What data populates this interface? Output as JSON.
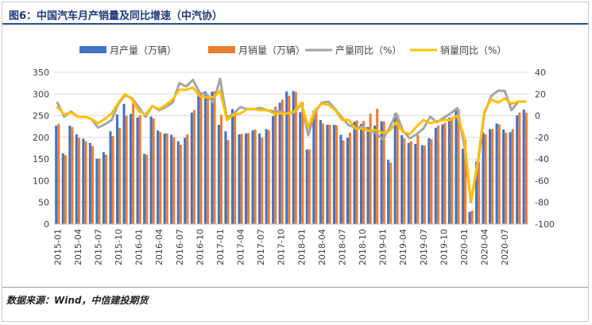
{
  "title": "图6：中国汽车月产销量及同比增速（中汽协）",
  "source": "数据来源：Wind，中信建投期货",
  "colors": {
    "production_bar": "#4472C4",
    "sales_bar": "#ED7D31",
    "production_yoy": "#A5A5A5",
    "sales_yoy": "#FFC000",
    "grid": "#d9d9d9",
    "title": "#1f3a78"
  },
  "chart_data": {
    "type": "bar",
    "legend_position": "top",
    "grid": true,
    "y_left": {
      "min": 0,
      "max": 350,
      "ticks": [
        "0",
        "50",
        "100",
        "150",
        "200",
        "250",
        "300",
        "350"
      ]
    },
    "y_right": {
      "min": -100,
      "max": 40,
      "ticks": [
        "-100",
        "-80",
        "-60",
        "-40",
        "-20",
        "0",
        "20",
        "40"
      ]
    },
    "categories": [
      "2015-01",
      "2015-02",
      "2015-03",
      "2015-04",
      "2015-05",
      "2015-06",
      "2015-07",
      "2015-08",
      "2015-09",
      "2015-10",
      "2015-11",
      "2015-12",
      "2016-01",
      "2016-02",
      "2016-03",
      "2016-04",
      "2016-05",
      "2016-06",
      "2016-07",
      "2016-08",
      "2016-09",
      "2016-10",
      "2016-11",
      "2016-12",
      "2017-01",
      "2017-02",
      "2017-03",
      "2017-04",
      "2017-05",
      "2017-06",
      "2017-07",
      "2017-08",
      "2017-09",
      "2017-10",
      "2017-11",
      "2017-12",
      "2018-01",
      "2018-02",
      "2018-03",
      "2018-04",
      "2018-05",
      "2018-06",
      "2018-07",
      "2018-08",
      "2018-09",
      "2018-10",
      "2018-11",
      "2018-12",
      "2019-01",
      "2019-02",
      "2019-03",
      "2019-04",
      "2019-05",
      "2019-06",
      "2019-07",
      "2019-08",
      "2019-09",
      "2019-10",
      "2019-11",
      "2019-12",
      "2020-01",
      "2020-02",
      "2020-03",
      "2020-04",
      "2020-05",
      "2020-06",
      "2020-07",
      "2020-08",
      "2020-09",
      "2020-10"
    ],
    "tick_labels": [
      "2015-01",
      "2015-04",
      "2015-07",
      "2015-10",
      "2016-01",
      "2016-04",
      "2016-07",
      "2016-10",
      "2017-01",
      "2017-04",
      "2017-07",
      "2017-10",
      "2018-01",
      "2018-04",
      "2018-07",
      "2018-10",
      "2019-01",
      "2019-04",
      "2019-07",
      "2019-10",
      "2020-01",
      "2020-04",
      "2020-07"
    ],
    "series": [
      {
        "name": "月产量（万辆）",
        "type": "bar",
        "axis": "left",
        "values": [
          227,
          163,
          227,
          207,
          197,
          187,
          151,
          166,
          214,
          253,
          277,
          254,
          246,
          162,
          248,
          216,
          209,
          206,
          191,
          199,
          257,
          301,
          306,
          305,
          229,
          214,
          265,
          207,
          209,
          216,
          209,
          219,
          249,
          280,
          306,
          307,
          258,
          172,
          261,
          240,
          229,
          229,
          206,
          199,
          236,
          231,
          224,
          227,
          237,
          148,
          255,
          205,
          187,
          185,
          182,
          198,
          222,
          230,
          245,
          263,
          174,
          28,
          144,
          211,
          219,
          232,
          218,
          212,
          251,
          264
        ],
        "color": "#4472C4"
      },
      {
        "name": "月销量（万辆）",
        "type": "bar",
        "axis": "left",
        "values": [
          231,
          159,
          224,
          199,
          191,
          180,
          151,
          160,
          203,
          222,
          250,
          280,
          251,
          160,
          244,
          212,
          209,
          200,
          183,
          207,
          263,
          304,
          294,
          306,
          252,
          194,
          254,
          208,
          210,
          218,
          199,
          217,
          271,
          287,
          296,
          305,
          281,
          172,
          265,
          232,
          229,
          228,
          193,
          211,
          239,
          238,
          255,
          266,
          237,
          142,
          252,
          198,
          191,
          206,
          181,
          196,
          227,
          234,
          246,
          265,
          195,
          31,
          143,
          207,
          219,
          230,
          211,
          219,
          257,
          257
        ],
        "color": "#ED7D31"
      },
      {
        "name": "产量同比（%）",
        "type": "line",
        "axis": "right",
        "values": [
          12,
          -1,
          4,
          -1,
          -1,
          -3,
          -11,
          -8,
          -4,
          11,
          19,
          16,
          8,
          -1,
          9,
          5,
          8,
          12,
          30,
          27,
          33,
          21,
          20,
          12,
          34,
          -2,
          2,
          8,
          6,
          6,
          7,
          5,
          4,
          4,
          2,
          3,
          11,
          -18,
          3,
          12,
          13,
          6,
          -2,
          -9,
          -11,
          -10,
          -14,
          -16,
          -22,
          -11,
          2,
          -14,
          -21,
          -17,
          -12,
          -1,
          -6,
          -2,
          2,
          7,
          -26,
          -80,
          -46,
          2,
          18,
          23,
          23,
          5,
          13,
          13
        ],
        "color": "#A5A5A5"
      },
      {
        "name": "销量同比（%）",
        "type": "line",
        "axis": "right",
        "values": [
          8,
          1,
          3,
          -1,
          -1,
          -3,
          -7,
          -3,
          2,
          12,
          20,
          15,
          4,
          1,
          9,
          6,
          10,
          15,
          24,
          24,
          26,
          18,
          17,
          17,
          23,
          -4,
          1,
          2,
          6,
          6,
          5,
          5,
          2,
          2,
          2,
          4,
          12,
          -11,
          5,
          11,
          10,
          5,
          -4,
          -4,
          -12,
          -12,
          -14,
          -13,
          -16,
          -14,
          -6,
          -15,
          -17,
          -10,
          -4,
          -7,
          -5,
          -4,
          -4,
          0,
          -19,
          -79,
          -43,
          4,
          15,
          12,
          16,
          11,
          13,
          13
        ],
        "color": "#FFC000"
      }
    ]
  }
}
